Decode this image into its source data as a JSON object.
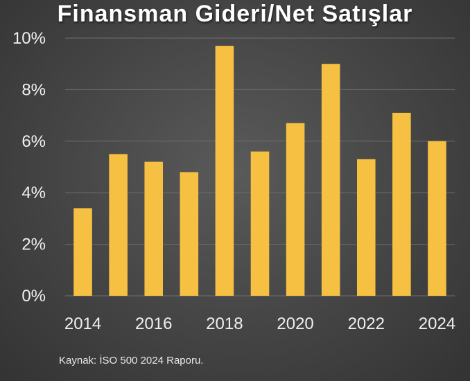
{
  "chart_data": {
    "type": "bar",
    "title": "Finansman Gideri/Net Satışlar",
    "categories": [
      "2014",
      "2015",
      "2016",
      "2017",
      "2018",
      "2019",
      "2020",
      "2021",
      "2022",
      "2023",
      "2024"
    ],
    "values": [
      3.4,
      5.5,
      5.2,
      4.8,
      9.7,
      5.6,
      6.7,
      9.0,
      5.3,
      7.1,
      6.0
    ],
    "x_tick_labels": [
      "2014",
      "2016",
      "2018",
      "2020",
      "2022",
      "2024"
    ],
    "y_ticks": [
      0,
      2,
      4,
      6,
      8,
      10
    ],
    "y_tick_labels": [
      "0%",
      "2%",
      "4%",
      "6%",
      "8%",
      "10%"
    ],
    "ylim": [
      0,
      10
    ],
    "xlabel": "",
    "ylabel": "",
    "grid": true,
    "bar_color": "#F6C142"
  },
  "source": "Kaynak: İSO 500 2024 Raporu."
}
